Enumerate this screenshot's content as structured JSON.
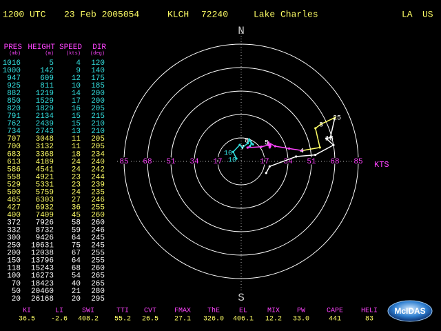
{
  "header": {
    "time": "1200 UTC",
    "date": "23 Feb 2005054",
    "station": "KLCH",
    "station_id": "72240",
    "place": "Lake Charles",
    "state": "LA",
    "country": "US"
  },
  "table": {
    "columns": [
      {
        "name": "PRES",
        "unit": "(mb)"
      },
      {
        "name": "HEIGHT",
        "unit": "(m)"
      },
      {
        "name": "SPEED",
        "unit": "(kts)"
      },
      {
        "name": "DIR",
        "unit": "(deg)"
      }
    ],
    "rows": [
      [
        1016,
        5,
        4,
        120
      ],
      [
        1000,
        142,
        9,
        140
      ],
      [
        947,
        609,
        12,
        175
      ],
      [
        925,
        811,
        10,
        185
      ],
      [
        882,
        1219,
        14,
        200
      ],
      [
        850,
        1529,
        17,
        200
      ],
      [
        820,
        1829,
        16,
        205
      ],
      [
        791,
        2134,
        15,
        215
      ],
      [
        762,
        2439,
        15,
        210
      ],
      [
        734,
        2743,
        13,
        210
      ],
      [
        707,
        3048,
        11,
        205
      ],
      [
        700,
        3132,
        11,
        205
      ],
      [
        683,
        3368,
        18,
        234
      ],
      [
        613,
        4189,
        24,
        240
      ],
      [
        586,
        4541,
        24,
        242
      ],
      [
        558,
        4921,
        23,
        244
      ],
      [
        529,
        5331,
        23,
        239
      ],
      [
        500,
        5759,
        24,
        235
      ],
      [
        465,
        6303,
        27,
        246
      ],
      [
        427,
        6932,
        36,
        255
      ],
      [
        400,
        7409,
        45,
        260
      ],
      [
        372,
        7926,
        58,
        260
      ],
      [
        332,
        8732,
        59,
        246
      ],
      [
        300,
        9426,
        64,
        245
      ],
      [
        250,
        10631,
        75,
        245
      ],
      [
        200,
        12038,
        67,
        255
      ],
      [
        150,
        13796,
        64,
        255
      ],
      [
        118,
        15243,
        68,
        260
      ],
      [
        100,
        16273,
        54,
        265
      ],
      [
        70,
        18423,
        40,
        265
      ],
      [
        50,
        20460,
        21,
        280
      ],
      [
        20,
        26168,
        20,
        295
      ]
    ]
  },
  "chart_data": {
    "type": "hodograph",
    "north": "N",
    "south": "S",
    "unit": "KTS",
    "rlim": [
      0,
      85
    ],
    "rticks": [
      17,
      34,
      51,
      68,
      85
    ],
    "labels": [
      "10",
      "10",
      "8",
      "7",
      "5",
      "4",
      "3",
      "25",
      "18"
    ]
  },
  "indices": [
    {
      "name": "KI",
      "value": "36.5"
    },
    {
      "name": "LI",
      "value": "-2.6"
    },
    {
      "name": "SWI",
      "value": "408.2"
    },
    {
      "name": "TTI",
      "value": "55.2"
    },
    {
      "name": "CVT",
      "value": "26.5"
    },
    {
      "name": "FMAX",
      "value": "27.1"
    },
    {
      "name": "ThE",
      "value": "326.0"
    },
    {
      "name": "EL",
      "value": "406.1"
    },
    {
      "name": "MIX",
      "value": "12.2"
    },
    {
      "name": "PW",
      "value": "33.0"
    },
    {
      "name": "CAPE",
      "value": "441"
    },
    {
      "name": "HELI",
      "value": "83"
    }
  ],
  "logo": "McIDAS"
}
